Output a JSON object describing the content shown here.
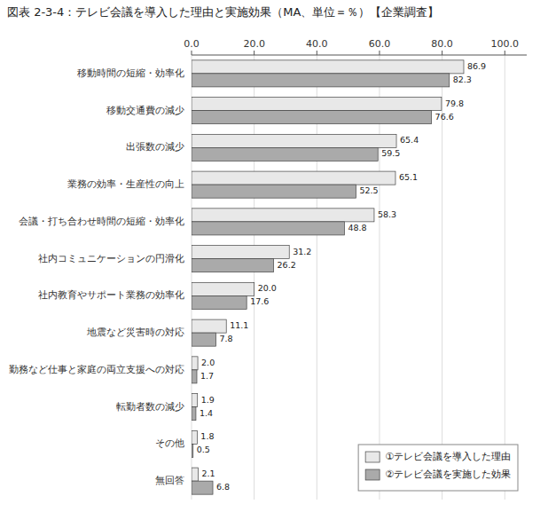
{
  "chart_data": {
    "type": "bar",
    "orientation": "horizontal",
    "title": "図表 2-3-4：テレビ会議を導入した理由と実施効果（MA、単位＝％）【企業調査】",
    "categories": [
      "移動時間の短縮・効率化",
      "移動交通費の減少",
      "出張数の減少",
      "業務の効率・生産性の向上",
      "会議・打ち合わせ時間の短縮・効率化",
      "社内コミュニケーションの円滑化",
      "社内教育やサポート業務の効率化",
      "地震など災害時の対応",
      "勤務など仕事と家庭の両立支援への対応",
      "転勤者数の減少",
      "その他",
      "無回答"
    ],
    "series": [
      {
        "name": "①テレビ会議を導入した理由",
        "color": "#e8e8e8",
        "values": [
          86.9,
          79.8,
          65.4,
          65.1,
          58.3,
          31.2,
          20.0,
          11.1,
          2.0,
          1.9,
          1.8,
          2.1
        ],
        "value_labels": [
          "86.9",
          "79.8",
          "65.4",
          "65.1",
          "58.3",
          "31.2",
          "20.0",
          "11.1",
          "2.0",
          "1.9",
          "1.8",
          "2.1"
        ]
      },
      {
        "name": "②テレビ会議を実施した効果",
        "color": "#aaaaaa",
        "values": [
          82.3,
          76.6,
          59.5,
          52.5,
          48.8,
          26.2,
          17.6,
          7.8,
          1.7,
          1.4,
          0.5,
          6.8
        ],
        "value_labels": [
          "82.3",
          "76.6",
          "59.5",
          "52.5",
          "48.8",
          "26.2",
          "17.6",
          "7.8",
          "1.7",
          "1.4",
          "0.5",
          "6.8"
        ]
      }
    ],
    "xlim": [
      0,
      107
    ],
    "xticks": [
      {
        "value": 0,
        "label": "0.0"
      },
      {
        "value": 20,
        "label": "20.0"
      },
      {
        "value": 40,
        "label": "40.0"
      },
      {
        "value": 60,
        "label": "60.0"
      },
      {
        "value": 80,
        "label": "80.0"
      },
      {
        "value": 100,
        "label": "100.0"
      }
    ],
    "grid": true,
    "legend": "lower right",
    "data_labels": true
  }
}
